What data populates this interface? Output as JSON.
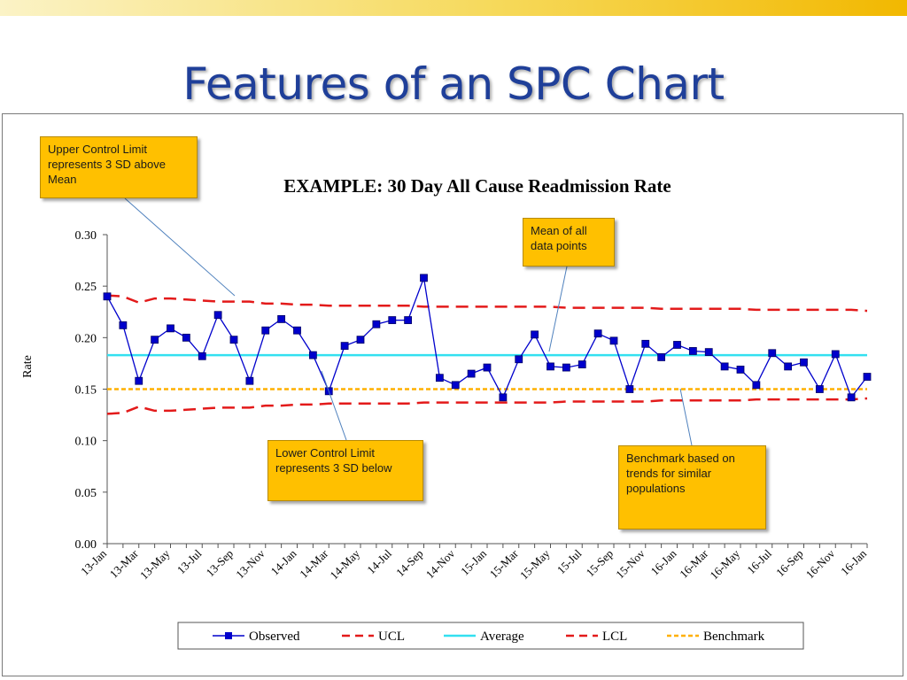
{
  "slide": {
    "title": "Features of an SPC Chart"
  },
  "callouts": {
    "ucl": "Upper Control Limit\nrepresents 3 SD above\nMean",
    "mean": "Mean of all\ndata points",
    "lcl": "Lower Control Limit\nrepresents 3 SD below",
    "benchmark": "Benchmark based on\ntrends for similar\npopulations"
  },
  "colors": {
    "observed": "#0000cc",
    "ucl": "#e31a1a",
    "lcl": "#e31a1a",
    "average": "#33e0f0",
    "benchmark": "#ffb000",
    "callout_fill": "#ffc000",
    "title": "#1f3f99"
  },
  "chart_data": {
    "type": "line",
    "title": "EXAMPLE: 30 Day All Cause Readmission Rate",
    "xlabel": "",
    "ylabel": "Rate",
    "ylim": [
      0,
      0.3
    ],
    "yticks": [
      "0.00",
      "0.05",
      "0.10",
      "0.15",
      "0.20",
      "0.25",
      "0.30"
    ],
    "x_tick_labels": [
      "13-Jan",
      "13-Mar",
      "13-May",
      "13-Jul",
      "13-Sep",
      "13-Nov",
      "14-Jan",
      "14-Mar",
      "14-May",
      "14-Jul",
      "14-Sep",
      "14-Nov",
      "15-Jan",
      "15-Mar",
      "15-May",
      "15-Jul",
      "15-Sep",
      "15-Nov",
      "16-Jan",
      "16-Mar",
      "16-May",
      "16-Jul",
      "16-Sep",
      "16-Nov",
      "16-Jan"
    ],
    "grid": false,
    "legend_position": "bottom",
    "x": [
      "13-Jan",
      "13-Feb",
      "13-Mar",
      "13-Apr",
      "13-May",
      "13-Jun",
      "13-Jul",
      "13-Aug",
      "13-Sep",
      "13-Oct",
      "13-Nov",
      "13-Dec",
      "14-Jan",
      "14-Feb",
      "14-Mar",
      "14-Apr",
      "14-May",
      "14-Jun",
      "14-Jul",
      "14-Aug",
      "14-Sep",
      "14-Oct",
      "14-Nov",
      "14-Dec",
      "15-Jan",
      "15-Feb",
      "15-Mar",
      "15-Apr",
      "15-May",
      "15-Jun",
      "15-Jul",
      "15-Aug",
      "15-Sep",
      "15-Oct",
      "15-Nov",
      "15-Dec",
      "16-Jan",
      "16-Feb",
      "16-Mar",
      "16-Apr",
      "16-May",
      "16-Jun",
      "16-Jul",
      "16-Aug",
      "16-Sep",
      "16-Oct",
      "16-Nov",
      "16-Dec",
      "16-Jan"
    ],
    "series": [
      {
        "name": "Observed",
        "style": "line-square-markers",
        "values": [
          0.24,
          0.212,
          0.158,
          0.198,
          0.209,
          0.2,
          0.182,
          0.222,
          0.198,
          0.158,
          0.207,
          0.218,
          0.207,
          0.183,
          0.148,
          0.192,
          0.198,
          0.213,
          0.217,
          0.217,
          0.258,
          0.161,
          0.154,
          0.165,
          0.171,
          0.142,
          0.179,
          0.203,
          0.172,
          0.171,
          0.174,
          0.204,
          0.197,
          0.15,
          0.194,
          0.181,
          0.193,
          0.187,
          0.186,
          0.172,
          0.169,
          0.154,
          0.185,
          0.172,
          0.176,
          0.15,
          0.184,
          0.142,
          0.162
        ]
      },
      {
        "name": "UCL",
        "style": "dashed",
        "values": [
          0.241,
          0.24,
          0.234,
          0.238,
          0.238,
          0.237,
          0.236,
          0.235,
          0.235,
          0.235,
          0.233,
          0.233,
          0.232,
          0.232,
          0.231,
          0.231,
          0.231,
          0.231,
          0.231,
          0.231,
          0.23,
          0.23,
          0.23,
          0.23,
          0.23,
          0.23,
          0.23,
          0.23,
          0.23,
          0.229,
          0.229,
          0.229,
          0.229,
          0.229,
          0.229,
          0.228,
          0.228,
          0.228,
          0.228,
          0.228,
          0.228,
          0.227,
          0.227,
          0.227,
          0.227,
          0.227,
          0.227,
          0.227,
          0.226
        ]
      },
      {
        "name": "Average",
        "style": "solid",
        "values": [
          0.183,
          0.183,
          0.183,
          0.183,
          0.183,
          0.183,
          0.183,
          0.183,
          0.183,
          0.183,
          0.183,
          0.183,
          0.183,
          0.183,
          0.183,
          0.183,
          0.183,
          0.183,
          0.183,
          0.183,
          0.183,
          0.183,
          0.183,
          0.183,
          0.183,
          0.183,
          0.183,
          0.183,
          0.183,
          0.183,
          0.183,
          0.183,
          0.183,
          0.183,
          0.183,
          0.183,
          0.183,
          0.183,
          0.183,
          0.183,
          0.183,
          0.183,
          0.183,
          0.183,
          0.183,
          0.183,
          0.183,
          0.183,
          0.183
        ]
      },
      {
        "name": "LCL",
        "style": "dashed",
        "values": [
          0.126,
          0.127,
          0.133,
          0.129,
          0.129,
          0.13,
          0.131,
          0.132,
          0.132,
          0.132,
          0.134,
          0.134,
          0.135,
          0.135,
          0.136,
          0.136,
          0.136,
          0.136,
          0.136,
          0.136,
          0.137,
          0.137,
          0.137,
          0.137,
          0.137,
          0.137,
          0.137,
          0.137,
          0.137,
          0.138,
          0.138,
          0.138,
          0.138,
          0.138,
          0.138,
          0.139,
          0.139,
          0.139,
          0.139,
          0.139,
          0.139,
          0.14,
          0.14,
          0.14,
          0.14,
          0.14,
          0.14,
          0.14,
          0.141
        ]
      },
      {
        "name": "Benchmark",
        "style": "dotted",
        "values": [
          0.15,
          0.15,
          0.15,
          0.15,
          0.15,
          0.15,
          0.15,
          0.15,
          0.15,
          0.15,
          0.15,
          0.15,
          0.15,
          0.15,
          0.15,
          0.15,
          0.15,
          0.15,
          0.15,
          0.15,
          0.15,
          0.15,
          0.15,
          0.15,
          0.15,
          0.15,
          0.15,
          0.15,
          0.15,
          0.15,
          0.15,
          0.15,
          0.15,
          0.15,
          0.15,
          0.15,
          0.15,
          0.15,
          0.15,
          0.15,
          0.15,
          0.15,
          0.15,
          0.15,
          0.15,
          0.15,
          0.15,
          0.15,
          0.15
        ]
      }
    ]
  }
}
